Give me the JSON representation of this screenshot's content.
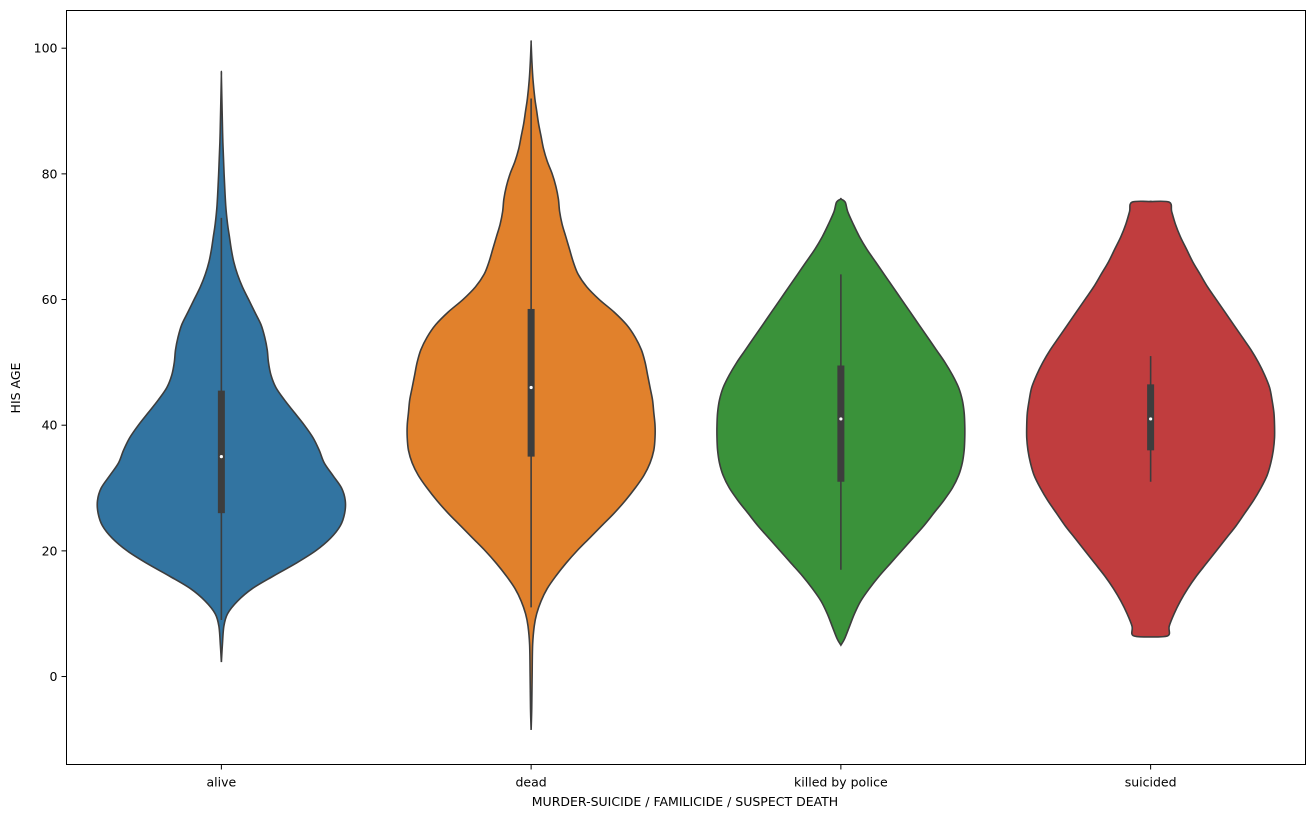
{
  "chart_data": {
    "type": "violin",
    "title": "",
    "xlabel": "MURDER-SUICIDE / FAMILICIDE / SUSPECT DEATH",
    "ylabel": "HIS AGE",
    "ylim": [
      -14,
      106
    ],
    "y_ticks": [
      0,
      20,
      40,
      60,
      80,
      100
    ],
    "grid": false,
    "legend": "none",
    "categories": [
      "alive",
      "dead",
      "killed by police",
      "suicided"
    ],
    "series": [
      {
        "category": "alive",
        "color": "#3274a1",
        "median": 35,
        "q1": 26,
        "q3": 45.5,
        "whisker_low": 9,
        "whisker_high": 73,
        "density": [
          [
            2.3,
            0.0
          ],
          [
            5,
            0.008
          ],
          [
            8,
            0.02
          ],
          [
            10,
            0.05
          ],
          [
            12,
            0.13
          ],
          [
            14,
            0.25
          ],
          [
            16,
            0.42
          ],
          [
            18,
            0.6
          ],
          [
            20,
            0.76
          ],
          [
            22,
            0.88
          ],
          [
            24,
            0.96
          ],
          [
            26,
            0.995
          ],
          [
            28,
            1.0
          ],
          [
            30,
            0.97
          ],
          [
            32,
            0.9
          ],
          [
            34,
            0.83
          ],
          [
            36,
            0.79
          ],
          [
            38,
            0.74
          ],
          [
            40,
            0.67
          ],
          [
            42,
            0.59
          ],
          [
            44,
            0.51
          ],
          [
            46,
            0.44
          ],
          [
            48,
            0.4
          ],
          [
            50,
            0.38
          ],
          [
            52,
            0.37
          ],
          [
            54,
            0.35
          ],
          [
            56,
            0.32
          ],
          [
            58,
            0.27
          ],
          [
            60,
            0.22
          ],
          [
            62,
            0.17
          ],
          [
            64,
            0.13
          ],
          [
            66,
            0.1
          ],
          [
            68,
            0.08
          ],
          [
            70,
            0.065
          ],
          [
            72,
            0.05
          ],
          [
            75,
            0.035
          ],
          [
            80,
            0.022
          ],
          [
            85,
            0.012
          ],
          [
            90,
            0.006
          ],
          [
            95.6,
            0.0
          ]
        ]
      },
      {
        "category": "dead",
        "color": "#e1812c",
        "median": 46,
        "q1": 35,
        "q3": 58.5,
        "whisker_low": 11,
        "whisker_high": 92,
        "density": [
          [
            -8.5,
            0.0
          ],
          [
            -5,
            0.005
          ],
          [
            0,
            0.008
          ],
          [
            5,
            0.012
          ],
          [
            8,
            0.025
          ],
          [
            10,
            0.045
          ],
          [
            12,
            0.08
          ],
          [
            14,
            0.13
          ],
          [
            16,
            0.2
          ],
          [
            18,
            0.28
          ],
          [
            20,
            0.37
          ],
          [
            22,
            0.47
          ],
          [
            24,
            0.57
          ],
          [
            26,
            0.67
          ],
          [
            28,
            0.76
          ],
          [
            30,
            0.84
          ],
          [
            32,
            0.91
          ],
          [
            34,
            0.96
          ],
          [
            36,
            0.99
          ],
          [
            38,
            1.0
          ],
          [
            40,
            1.0
          ],
          [
            42,
            0.99
          ],
          [
            44,
            0.98
          ],
          [
            46,
            0.96
          ],
          [
            48,
            0.94
          ],
          [
            50,
            0.92
          ],
          [
            52,
            0.89
          ],
          [
            54,
            0.84
          ],
          [
            56,
            0.77
          ],
          [
            58,
            0.67
          ],
          [
            60,
            0.55
          ],
          [
            62,
            0.45
          ],
          [
            64,
            0.38
          ],
          [
            66,
            0.34
          ],
          [
            68,
            0.31
          ],
          [
            70,
            0.28
          ],
          [
            72,
            0.25
          ],
          [
            74,
            0.23
          ],
          [
            76,
            0.22
          ],
          [
            78,
            0.2
          ],
          [
            80,
            0.17
          ],
          [
            82,
            0.13
          ],
          [
            84,
            0.1
          ],
          [
            86,
            0.08
          ],
          [
            88,
            0.06
          ],
          [
            90,
            0.045
          ],
          [
            92,
            0.03
          ],
          [
            95,
            0.015
          ],
          [
            98,
            0.006
          ],
          [
            100.8,
            0.0
          ]
        ]
      },
      {
        "category": "killed by police",
        "color": "#3a923a",
        "median": 41,
        "q1": 31,
        "q3": 49.5,
        "whisker_low": 17,
        "whisker_high": 64,
        "density": [
          [
            5,
            0.0
          ],
          [
            6,
            0.03
          ],
          [
            8,
            0.07
          ],
          [
            10,
            0.11
          ],
          [
            12,
            0.16
          ],
          [
            14,
            0.23
          ],
          [
            16,
            0.31
          ],
          [
            18,
            0.4
          ],
          [
            20,
            0.49
          ],
          [
            22,
            0.58
          ],
          [
            24,
            0.67
          ],
          [
            26,
            0.75
          ],
          [
            28,
            0.83
          ],
          [
            30,
            0.9
          ],
          [
            32,
            0.95
          ],
          [
            34,
            0.98
          ],
          [
            36,
            0.995
          ],
          [
            38,
            1.0
          ],
          [
            40,
            1.0
          ],
          [
            42,
            0.995
          ],
          [
            44,
            0.98
          ],
          [
            46,
            0.95
          ],
          [
            48,
            0.9
          ],
          [
            50,
            0.84
          ],
          [
            52,
            0.77
          ],
          [
            54,
            0.7
          ],
          [
            56,
            0.63
          ],
          [
            58,
            0.56
          ],
          [
            60,
            0.49
          ],
          [
            62,
            0.42
          ],
          [
            64,
            0.35
          ],
          [
            66,
            0.28
          ],
          [
            68,
            0.21
          ],
          [
            70,
            0.15
          ],
          [
            72,
            0.1
          ],
          [
            74,
            0.055
          ],
          [
            75.5,
            0.035
          ],
          [
            76,
            0.0
          ]
        ]
      },
      {
        "category": "suicided",
        "color": "#c03d3e",
        "median": 41,
        "q1": 36,
        "q3": 46.5,
        "whisker_low": 31,
        "whisker_high": 51,
        "density": [
          [
            6.3,
            0.0
          ],
          [
            6.5,
            0.14
          ],
          [
            8,
            0.15
          ],
          [
            10,
            0.19
          ],
          [
            12,
            0.24
          ],
          [
            14,
            0.3
          ],
          [
            16,
            0.37
          ],
          [
            18,
            0.45
          ],
          [
            20,
            0.53
          ],
          [
            22,
            0.61
          ],
          [
            24,
            0.69
          ],
          [
            26,
            0.76
          ],
          [
            28,
            0.83
          ],
          [
            30,
            0.89
          ],
          [
            32,
            0.94
          ],
          [
            34,
            0.97
          ],
          [
            36,
            0.99
          ],
          [
            38,
            1.0
          ],
          [
            40,
            1.0
          ],
          [
            42,
            0.995
          ],
          [
            44,
            0.98
          ],
          [
            46,
            0.96
          ],
          [
            48,
            0.92
          ],
          [
            50,
            0.87
          ],
          [
            52,
            0.81
          ],
          [
            54,
            0.74
          ],
          [
            56,
            0.67
          ],
          [
            58,
            0.6
          ],
          [
            60,
            0.53
          ],
          [
            62,
            0.46
          ],
          [
            64,
            0.4
          ],
          [
            66,
            0.34
          ],
          [
            68,
            0.29
          ],
          [
            70,
            0.24
          ],
          [
            72,
            0.2
          ],
          [
            74,
            0.17
          ],
          [
            75.5,
            0.15
          ],
          [
            75.6,
            0.0
          ]
        ]
      }
    ]
  }
}
